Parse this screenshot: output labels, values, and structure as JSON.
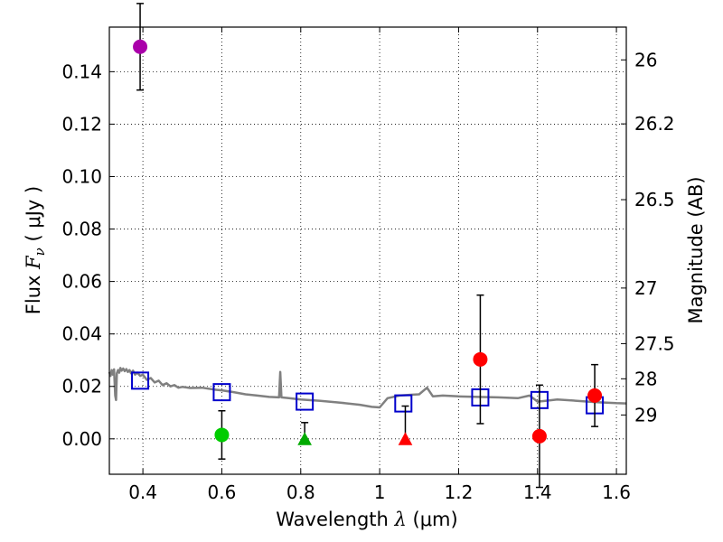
{
  "chart_data": {
    "type": "scatter",
    "x_axis": {
      "label_prefix": "Wavelength  ",
      "label_symbol": "λ",
      "label_unit": " (μm)",
      "range": [
        0.315,
        1.625
      ],
      "ticks": [
        "0.4",
        "0.6",
        "0.8",
        "1",
        "1.2",
        "1.4",
        "1.6"
      ],
      "tick_values": [
        0.4,
        0.6,
        0.8,
        1.0,
        1.2,
        1.4,
        1.6
      ]
    },
    "y_axis": {
      "label_prefix": "Flux  ",
      "label_symbol": "F",
      "label_subscript": "ν",
      "label_unit": "  ( μJy )",
      "range": [
        -0.0135,
        0.157
      ],
      "ticks": [
        "0.00",
        "0.02",
        "0.04",
        "0.06",
        "0.08",
        "0.10",
        "0.12",
        "0.14"
      ],
      "tick_values": [
        0.0,
        0.02,
        0.04,
        0.06,
        0.08,
        0.1,
        0.12,
        0.14
      ]
    },
    "y2_axis": {
      "label": "Magnitude (AB)",
      "ticks": [
        {
          "label": "26",
          "flux": 0.1445
        },
        {
          "label": "26.2",
          "flux": 0.1201
        },
        {
          "label": "26.5",
          "flux": 0.0912
        },
        {
          "label": "27",
          "flux": 0.0575
        },
        {
          "label": "27.5",
          "flux": 0.0363
        },
        {
          "label": "28",
          "flux": 0.0229
        },
        {
          "label": "29",
          "flux": 0.0091
        }
      ]
    },
    "grid": true,
    "template_spectrum": {
      "color": "#808080",
      "points": [
        [
          0.315,
          0.0255
        ],
        [
          0.318,
          0.024
        ],
        [
          0.321,
          0.0262
        ],
        [
          0.324,
          0.0245
        ],
        [
          0.327,
          0.0265
        ],
        [
          0.33,
          0.0165
        ],
        [
          0.332,
          0.0148
        ],
        [
          0.334,
          0.025
        ],
        [
          0.337,
          0.0262
        ],
        [
          0.34,
          0.0252
        ],
        [
          0.343,
          0.027
        ],
        [
          0.346,
          0.026
        ],
        [
          0.35,
          0.0268
        ],
        [
          0.354,
          0.0258
        ],
        [
          0.358,
          0.0266
        ],
        [
          0.362,
          0.0255
        ],
        [
          0.366,
          0.0262
        ],
        [
          0.37,
          0.025
        ],
        [
          0.375,
          0.026
        ],
        [
          0.38,
          0.0245
        ],
        [
          0.386,
          0.0252
        ],
        [
          0.393,
          0.024
        ],
        [
          0.4,
          0.0245
        ],
        [
          0.41,
          0.0225
        ],
        [
          0.42,
          0.0232
        ],
        [
          0.43,
          0.0215
        ],
        [
          0.44,
          0.0222
        ],
        [
          0.45,
          0.0205
        ],
        [
          0.46,
          0.0212
        ],
        [
          0.47,
          0.02
        ],
        [
          0.48,
          0.0205
        ],
        [
          0.49,
          0.0195
        ],
        [
          0.5,
          0.0198
        ],
        [
          0.52,
          0.0194
        ],
        [
          0.55,
          0.0195
        ],
        [
          0.58,
          0.0188
        ],
        [
          0.6,
          0.0185
        ],
        [
          0.63,
          0.0178
        ],
        [
          0.66,
          0.017
        ],
        [
          0.69,
          0.0165
        ],
        [
          0.72,
          0.016
        ],
        [
          0.745,
          0.0158
        ],
        [
          0.748,
          0.0255
        ],
        [
          0.751,
          0.0158
        ],
        [
          0.77,
          0.0155
        ],
        [
          0.8,
          0.015
        ],
        [
          0.85,
          0.0145
        ],
        [
          0.9,
          0.0138
        ],
        [
          0.95,
          0.013
        ],
        [
          0.98,
          0.0122
        ],
        [
          1.0,
          0.012
        ],
        [
          1.02,
          0.0155
        ],
        [
          1.05,
          0.0165
        ],
        [
          1.08,
          0.0168
        ],
        [
          1.1,
          0.017
        ],
        [
          1.12,
          0.0195
        ],
        [
          1.135,
          0.0162
        ],
        [
          1.16,
          0.0165
        ],
        [
          1.2,
          0.0162
        ],
        [
          1.25,
          0.016
        ],
        [
          1.3,
          0.0158
        ],
        [
          1.35,
          0.0155
        ],
        [
          1.38,
          0.0165
        ],
        [
          1.4,
          0.0142
        ],
        [
          1.42,
          0.0145
        ],
        [
          1.45,
          0.015
        ],
        [
          1.5,
          0.0145
        ],
        [
          1.55,
          0.014
        ],
        [
          1.6,
          0.0136
        ],
        [
          1.625,
          0.0135
        ]
      ]
    },
    "model_points": {
      "marker": "open-square",
      "color": "#0000cc",
      "points": [
        {
          "x": 0.393,
          "y": 0.0222
        },
        {
          "x": 0.6,
          "y": 0.0178
        },
        {
          "x": 0.81,
          "y": 0.0142
        },
        {
          "x": 1.06,
          "y": 0.0135
        },
        {
          "x": 1.255,
          "y": 0.0158
        },
        {
          "x": 1.405,
          "y": 0.0148
        },
        {
          "x": 1.545,
          "y": 0.0128
        }
      ]
    },
    "observations": [
      {
        "x": 0.393,
        "y": 0.1495,
        "err": 0.0165,
        "marker": "circle",
        "color": "#aa00aa"
      },
      {
        "x": 0.6,
        "y": 0.0015,
        "err": 0.0092,
        "marker": "circle",
        "color": "#00cc00"
      },
      {
        "x": 0.81,
        "y": 0.0,
        "err_low": 0.0,
        "err_high": 0.0062,
        "marker": "triangle",
        "color": "#00aa00"
      },
      {
        "x": 1.065,
        "y": 0.0,
        "err_low": 0.0,
        "err_high": 0.0125,
        "marker": "triangle",
        "color": "#ff0000"
      },
      {
        "x": 1.255,
        "y": 0.0303,
        "err": 0.0245,
        "marker": "circle",
        "color": "#ff0000"
      },
      {
        "x": 1.405,
        "y": 0.001,
        "err": 0.0195,
        "marker": "circle",
        "color": "#ff0000"
      },
      {
        "x": 1.545,
        "y": 0.0165,
        "err": 0.0118,
        "marker": "circle",
        "color": "#ff0000"
      }
    ]
  }
}
